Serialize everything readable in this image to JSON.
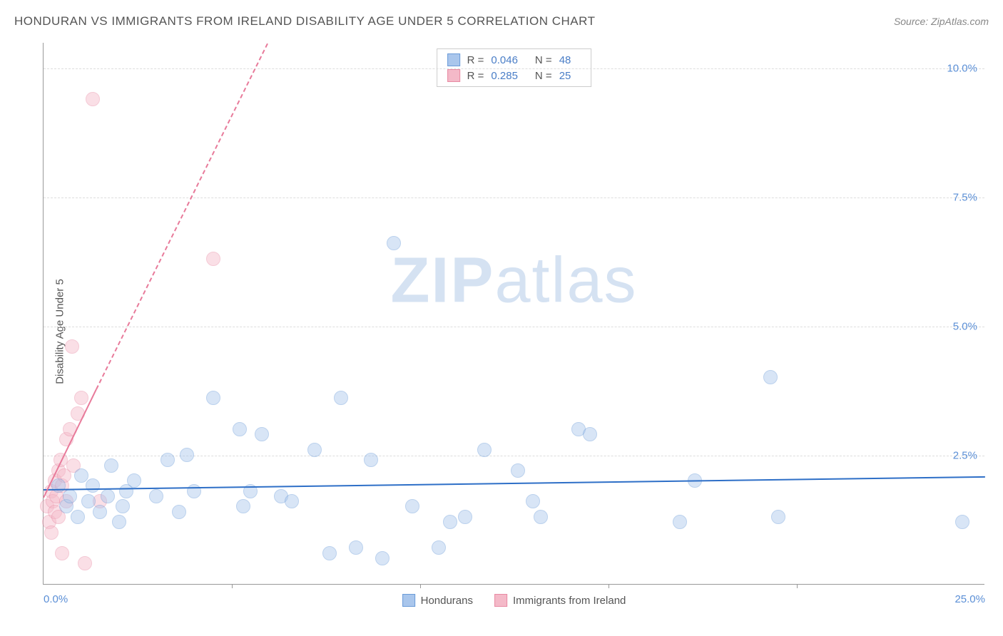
{
  "header": {
    "title": "HONDURAN VS IMMIGRANTS FROM IRELAND DISABILITY AGE UNDER 5 CORRELATION CHART",
    "source_label": "Source: ",
    "source_value": "ZipAtlas.com"
  },
  "watermark": {
    "zip": "ZIP",
    "atlas": "atlas"
  },
  "chart": {
    "type": "scatter",
    "y_axis_label": "Disability Age Under 5",
    "background_color": "#ffffff",
    "grid_color": "#dddddd",
    "axis_color": "#999999",
    "xlim": [
      0,
      25
    ],
    "ylim": [
      0,
      10.5
    ],
    "x_ticks": [
      0,
      5,
      10,
      15,
      20,
      25
    ],
    "x_tick_labels_shown": {
      "0": "0.0%",
      "25": "25.0%"
    },
    "y_ticks": [
      2.5,
      5.0,
      7.5,
      10.0
    ],
    "y_tick_labels": [
      "2.5%",
      "5.0%",
      "7.5%",
      "10.0%"
    ],
    "tick_label_color": "#5b8fd6",
    "tick_label_fontsize": 15,
    "marker_radius": 10,
    "marker_opacity": 0.45,
    "series": {
      "hondurans": {
        "label": "Hondurans",
        "color_fill": "#a9c6ec",
        "color_stroke": "#6a9bd8",
        "trend": {
          "color": "#2e6fc7",
          "width": 2,
          "solid_from_x": 0,
          "solid_to_x": 25,
          "y_at_x0": 1.85,
          "y_at_xmax": 2.1
        },
        "stats": {
          "R": "0.046",
          "N": "48"
        },
        "points": [
          [
            0.4,
            1.9
          ],
          [
            0.6,
            1.5
          ],
          [
            0.7,
            1.7
          ],
          [
            0.9,
            1.3
          ],
          [
            1.0,
            2.1
          ],
          [
            1.2,
            1.6
          ],
          [
            1.3,
            1.9
          ],
          [
            1.5,
            1.4
          ],
          [
            1.7,
            1.7
          ],
          [
            1.8,
            2.3
          ],
          [
            2.0,
            1.2
          ],
          [
            2.2,
            1.8
          ],
          [
            2.4,
            2.0
          ],
          [
            2.1,
            1.5
          ],
          [
            3.0,
            1.7
          ],
          [
            3.3,
            2.4
          ],
          [
            3.6,
            1.4
          ],
          [
            3.8,
            2.5
          ],
          [
            4.0,
            1.8
          ],
          [
            4.5,
            3.6
          ],
          [
            5.2,
            3.0
          ],
          [
            5.3,
            1.5
          ],
          [
            5.5,
            1.8
          ],
          [
            5.8,
            2.9
          ],
          [
            6.3,
            1.7
          ],
          [
            6.6,
            1.6
          ],
          [
            7.2,
            2.6
          ],
          [
            7.6,
            0.6
          ],
          [
            7.9,
            3.6
          ],
          [
            8.3,
            0.7
          ],
          [
            8.7,
            2.4
          ],
          [
            9.0,
            0.5
          ],
          [
            9.3,
            6.6
          ],
          [
            9.8,
            1.5
          ],
          [
            10.5,
            0.7
          ],
          [
            10.8,
            1.2
          ],
          [
            11.2,
            1.3
          ],
          [
            11.7,
            2.6
          ],
          [
            12.6,
            2.2
          ],
          [
            13.0,
            1.6
          ],
          [
            13.2,
            1.3
          ],
          [
            14.2,
            3.0
          ],
          [
            14.5,
            2.9
          ],
          [
            16.9,
            1.2
          ],
          [
            17.3,
            2.0
          ],
          [
            19.3,
            4.0
          ],
          [
            19.5,
            1.3
          ],
          [
            24.4,
            1.2
          ]
        ]
      },
      "ireland": {
        "label": "Immigants from Ireland",
        "label_display": "Immigrants from Ireland",
        "color_fill": "#f4b9c8",
        "color_stroke": "#e88aa3",
        "trend": {
          "color": "#e87a9a",
          "width": 2,
          "solid_from_x": 0,
          "solid_to_x": 1.4,
          "dashed_to_x": 9.0,
          "y_at_x0": 1.7,
          "y_at_solid_end": 3.8,
          "y_at_dashed_end": 15.0
        },
        "stats": {
          "R": "0.285",
          "N": "25"
        },
        "points": [
          [
            0.1,
            1.5
          ],
          [
            0.15,
            1.2
          ],
          [
            0.2,
            1.8
          ],
          [
            0.2,
            1.0
          ],
          [
            0.25,
            1.6
          ],
          [
            0.3,
            1.4
          ],
          [
            0.3,
            2.0
          ],
          [
            0.35,
            1.7
          ],
          [
            0.4,
            2.2
          ],
          [
            0.4,
            1.3
          ],
          [
            0.45,
            2.4
          ],
          [
            0.5,
            1.9
          ],
          [
            0.5,
            0.6
          ],
          [
            0.55,
            2.1
          ],
          [
            0.6,
            1.6
          ],
          [
            0.6,
            2.8
          ],
          [
            0.7,
            3.0
          ],
          [
            0.75,
            4.6
          ],
          [
            0.8,
            2.3
          ],
          [
            0.9,
            3.3
          ],
          [
            1.0,
            3.6
          ],
          [
            1.1,
            0.4
          ],
          [
            1.3,
            9.4
          ],
          [
            1.5,
            1.6
          ],
          [
            4.5,
            6.3
          ]
        ]
      }
    },
    "stats_legend": {
      "r_label": "R =",
      "n_label": "N ="
    },
    "bottom_legend_items": [
      "hondurans",
      "ireland"
    ]
  }
}
